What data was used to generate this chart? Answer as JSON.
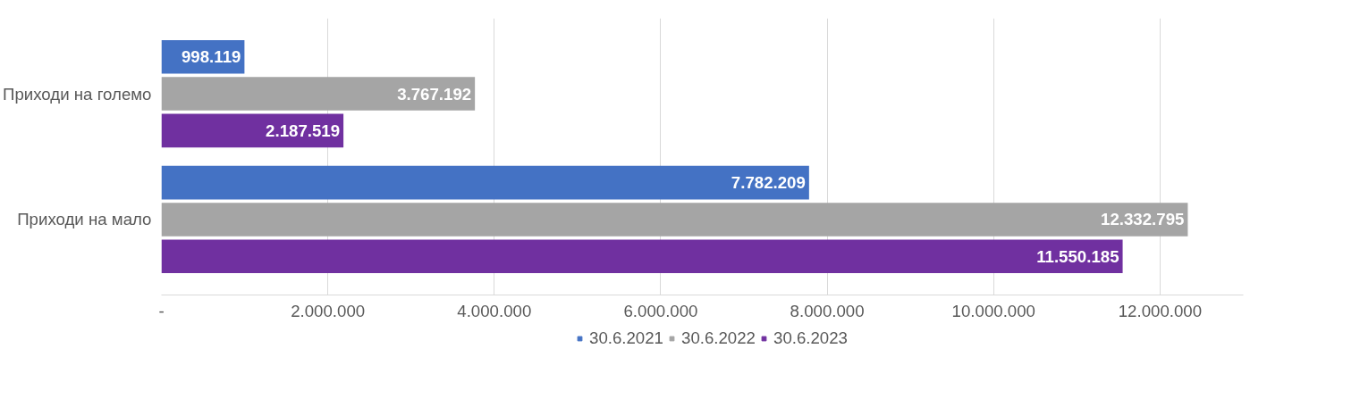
{
  "chart_data": {
    "type": "bar",
    "orientation": "horizontal",
    "categories": [
      "Приходи на големо",
      "Приходи на мало"
    ],
    "series": [
      {
        "name": "30.6.2021",
        "color": "#4472c4",
        "values": [
          998119,
          7782209
        ],
        "value_labels": [
          "998.119",
          "7.782.209"
        ]
      },
      {
        "name": "30.6.2022",
        "color": "#a5a5a5",
        "values": [
          3767192,
          12332795
        ],
        "value_labels": [
          "3.767.192",
          "12.332.795"
        ]
      },
      {
        "name": "30.6.2023",
        "color": "#7030a0",
        "values": [
          2187519,
          11550185
        ],
        "value_labels": [
          "2.187.519",
          "11.550.185"
        ]
      }
    ],
    "xlim": [
      0,
      13000000
    ],
    "xticks": [
      {
        "value": 0,
        "label": "-"
      },
      {
        "value": 2000000,
        "label": "2.000.000"
      },
      {
        "value": 4000000,
        "label": "4.000.000"
      },
      {
        "value": 6000000,
        "label": "6.000.000"
      },
      {
        "value": 8000000,
        "label": "8.000.000"
      },
      {
        "value": 10000000,
        "label": "10.000.000"
      },
      {
        "value": 12000000,
        "label": "12.000.000"
      }
    ],
    "grid": "x",
    "legend": "bottom"
  }
}
